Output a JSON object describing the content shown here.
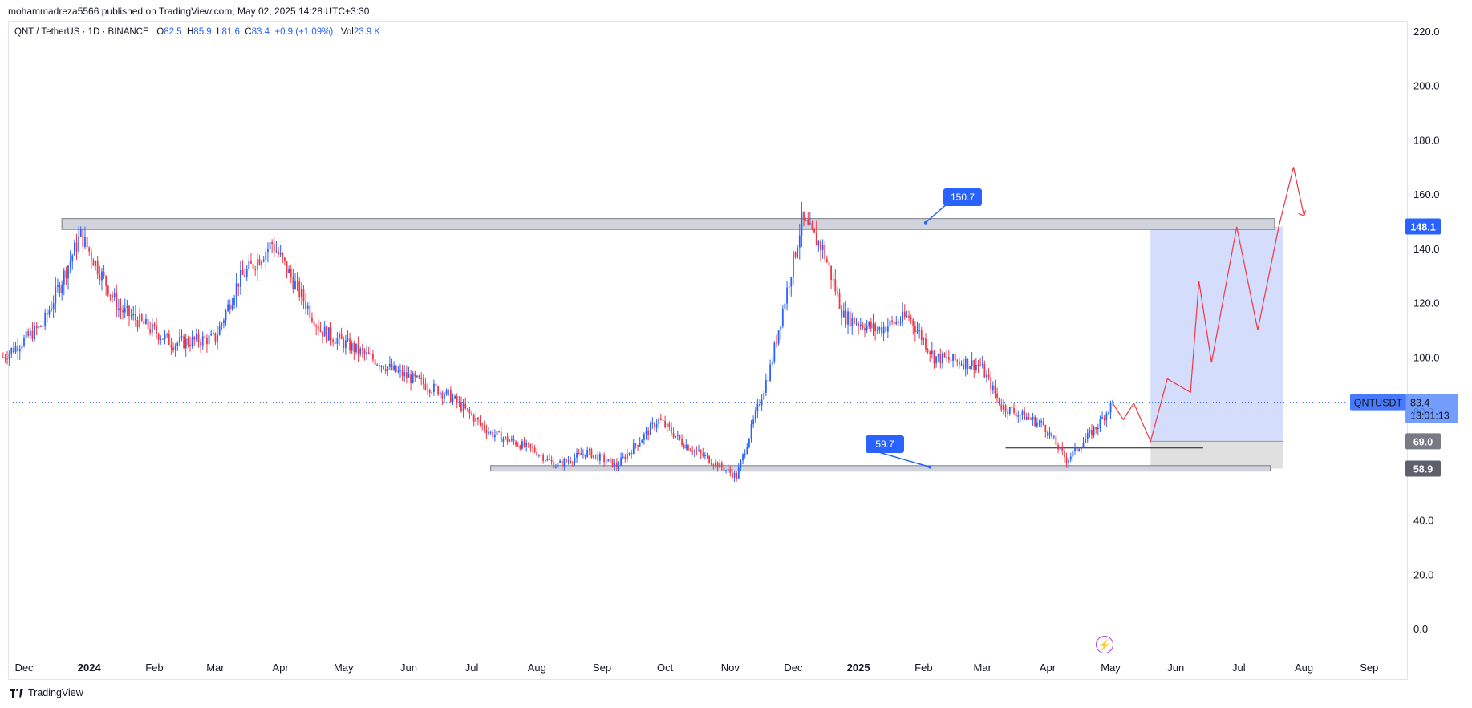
{
  "header": {
    "published_line": "mohammadreza5566 published on TradingView.com, May 02, 2025 14:28 UTC+3:30"
  },
  "symbol_bar": {
    "symbol": "QNT / TetherUS · 1D · BINANCE",
    "open_label": "O",
    "open_value": "82.5",
    "high_label": "H",
    "high_value": "85.9",
    "low_label": "L",
    "low_value": "81.6",
    "close_label": "C",
    "close_value": "83.4",
    "change": "+0.9 (+1.09%)",
    "vol_label": "Vol",
    "vol_value": "23.9 K"
  },
  "footer": {
    "brand": "TradingView"
  },
  "colors": {
    "up": "#2962ff",
    "down": "#f23645",
    "zone_fill": "#d1d4dc",
    "target_box": "#cfd9fb",
    "stop_box": "#e0e0e0",
    "projection": "#f23645",
    "price_line": "#2962ff"
  },
  "chart_data": {
    "type": "candlestick",
    "y_axis": {
      "ticks": [
        "220.0",
        "200.0",
        "180.0",
        "160.0",
        "140.0",
        "120.0",
        "100.0",
        "80.0",
        "60.0",
        "40.0",
        "20.0",
        "0.0"
      ],
      "ylim": [
        0,
        220
      ]
    },
    "x_axis": {
      "ticks": [
        {
          "label": "Dec",
          "bold": false
        },
        {
          "label": "2024",
          "bold": true
        },
        {
          "label": "Feb",
          "bold": false
        },
        {
          "label": "Mar",
          "bold": false
        },
        {
          "label": "Apr",
          "bold": false
        },
        {
          "label": "May",
          "bold": false
        },
        {
          "label": "Jun",
          "bold": false
        },
        {
          "label": "Jul",
          "bold": false
        },
        {
          "label": "Aug",
          "bold": false
        },
        {
          "label": "Sep",
          "bold": false
        },
        {
          "label": "Oct",
          "bold": false
        },
        {
          "label": "Nov",
          "bold": false
        },
        {
          "label": "Dec",
          "bold": false
        },
        {
          "label": "2025",
          "bold": true
        },
        {
          "label": "Feb",
          "bold": false
        },
        {
          "label": "Mar",
          "bold": false
        },
        {
          "label": "Apr",
          "bold": false
        },
        {
          "label": "May",
          "bold": false
        },
        {
          "label": "Jun",
          "bold": false
        },
        {
          "label": "Jul",
          "bold": false
        },
        {
          "label": "Aug",
          "bold": false
        },
        {
          "label": "Sep",
          "bold": false
        }
      ]
    },
    "series": [
      {
        "name": "QNTUSDT",
        "approx_close_path": [
          {
            "date": "2023-11-21",
            "value": 100
          },
          {
            "date": "2023-12-10",
            "value": 112
          },
          {
            "date": "2023-12-28",
            "value": 145
          },
          {
            "date": "2024-01-15",
            "value": 118
          },
          {
            "date": "2024-02-10",
            "value": 105
          },
          {
            "date": "2024-03-01",
            "value": 107
          },
          {
            "date": "2024-03-12",
            "value": 128
          },
          {
            "date": "2024-03-28",
            "value": 142
          },
          {
            "date": "2024-04-20",
            "value": 110
          },
          {
            "date": "2024-05-25",
            "value": 95
          },
          {
            "date": "2024-06-20",
            "value": 86
          },
          {
            "date": "2024-07-10",
            "value": 72
          },
          {
            "date": "2024-07-30",
            "value": 66
          },
          {
            "date": "2024-08-10",
            "value": 60
          },
          {
            "date": "2024-08-25",
            "value": 65
          },
          {
            "date": "2024-09-08",
            "value": 60
          },
          {
            "date": "2024-09-28",
            "value": 77
          },
          {
            "date": "2024-10-10",
            "value": 68
          },
          {
            "date": "2024-11-04",
            "value": 56
          },
          {
            "date": "2024-11-20",
            "value": 96
          },
          {
            "date": "2024-12-05",
            "value": 150
          },
          {
            "date": "2024-12-15",
            "value": 140
          },
          {
            "date": "2024-12-25",
            "value": 115
          },
          {
            "date": "2025-01-10",
            "value": 110
          },
          {
            "date": "2025-01-25",
            "value": 115
          },
          {
            "date": "2025-02-06",
            "value": 100
          },
          {
            "date": "2025-02-28",
            "value": 97
          },
          {
            "date": "2025-03-10",
            "value": 82
          },
          {
            "date": "2025-03-30",
            "value": 75
          },
          {
            "date": "2025-04-10",
            "value": 62
          },
          {
            "date": "2025-04-25",
            "value": 75
          },
          {
            "date": "2025-05-02",
            "value": 83.4
          }
        ]
      }
    ],
    "annotations": {
      "resistance_zone": {
        "low": 147,
        "high": 151,
        "label": "150.7"
      },
      "support_zone": {
        "low": 58,
        "high": 60,
        "label": "59.7"
      },
      "price_tag": {
        "symbol": "QNTUSDT",
        "value": "83.4",
        "countdown": "13:01:13"
      },
      "axis_tags": [
        {
          "value": "148.1",
          "color": "#2962ff"
        },
        {
          "value": "69.0",
          "color": "#787b86"
        },
        {
          "value": "58.9",
          "color": "#5d606b"
        }
      ],
      "projection_path_values": [
        83,
        77,
        83,
        69,
        92,
        87,
        128,
        98,
        148,
        110,
        148,
        170,
        152
      ]
    }
  }
}
